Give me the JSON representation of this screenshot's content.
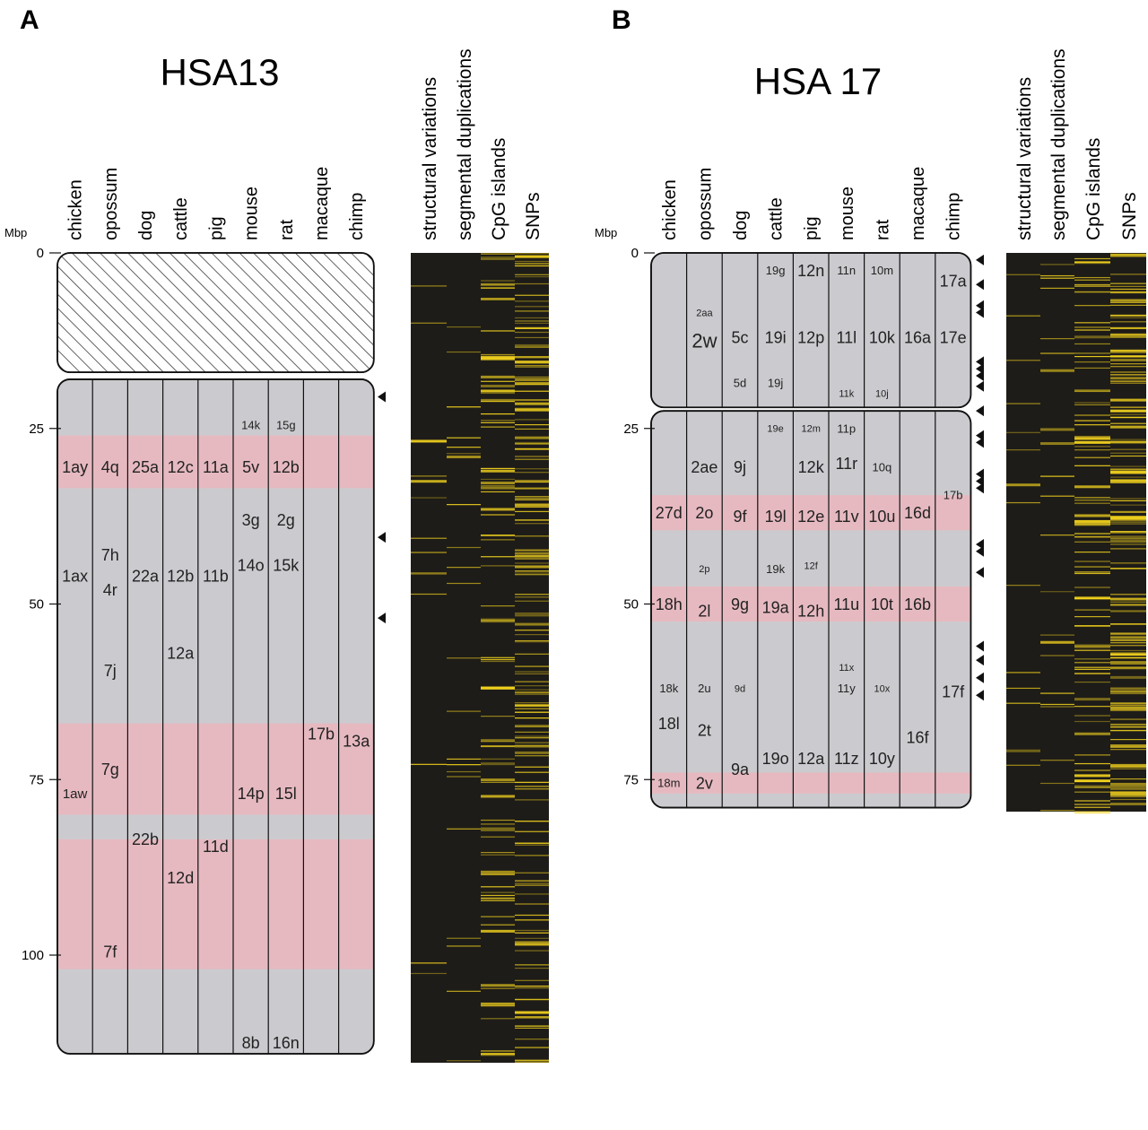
{
  "panels": [
    {
      "letter": "A",
      "title": "HSA13",
      "axis_unit": "Mbp",
      "axis_max": 117,
      "ticks": [
        0,
        25,
        50,
        75,
        100
      ],
      "species": [
        "chicken",
        "opossum",
        "dog",
        "cattle",
        "pig",
        "mouse",
        "rat",
        "macaque",
        "chimp"
      ],
      "tracks": [
        "structural variations",
        "segmental duplications",
        "CpG islands",
        "SNPs"
      ],
      "blocks": [
        {
          "start": 0,
          "end": 17,
          "kind": "hatched"
        },
        {
          "start": 18,
          "end": 117,
          "kind": "gray"
        }
      ],
      "pink_bands": [
        [
          26,
          33.5
        ],
        [
          67,
          80
        ],
        [
          83.5,
          102
        ]
      ],
      "arrows": [
        20.5,
        40.5,
        52
      ],
      "labels": [
        {
          "col": 0,
          "mbp": 30.5,
          "text": "1ay",
          "size": "m"
        },
        {
          "col": 1,
          "mbp": 30.5,
          "text": "4q",
          "size": "m"
        },
        {
          "col": 2,
          "mbp": 30.5,
          "text": "25a",
          "size": "m"
        },
        {
          "col": 3,
          "mbp": 30.5,
          "text": "12c",
          "size": "m"
        },
        {
          "col": 4,
          "mbp": 30.5,
          "text": "11a",
          "size": "m"
        },
        {
          "col": 5,
          "mbp": 30.5,
          "text": "5v",
          "size": "m"
        },
        {
          "col": 6,
          "mbp": 30.5,
          "text": "12b",
          "size": "m"
        },
        {
          "col": 5,
          "mbp": 24.5,
          "text": "14k",
          "size": "s"
        },
        {
          "col": 6,
          "mbp": 24.5,
          "text": "15g",
          "size": "s"
        },
        {
          "col": 5,
          "mbp": 38,
          "text": "3g",
          "size": "m"
        },
        {
          "col": 6,
          "mbp": 38,
          "text": "2g",
          "size": "m"
        },
        {
          "col": 1,
          "mbp": 43,
          "text": "7h",
          "size": "m"
        },
        {
          "col": 0,
          "mbp": 46,
          "text": "1ax",
          "size": "m"
        },
        {
          "col": 1,
          "mbp": 48,
          "text": "4r",
          "size": "m"
        },
        {
          "col": 2,
          "mbp": 46,
          "text": "22a",
          "size": "m"
        },
        {
          "col": 3,
          "mbp": 46,
          "text": "12b",
          "size": "m"
        },
        {
          "col": 4,
          "mbp": 46,
          "text": "11b",
          "size": "m"
        },
        {
          "col": 5,
          "mbp": 44.5,
          "text": "14o",
          "size": "m"
        },
        {
          "col": 6,
          "mbp": 44.5,
          "text": "15k",
          "size": "m"
        },
        {
          "col": 3,
          "mbp": 57,
          "text": "12a",
          "size": "m"
        },
        {
          "col": 1,
          "mbp": 59.5,
          "text": "7j",
          "size": "m"
        },
        {
          "col": 7,
          "mbp": 68.5,
          "text": "17b",
          "size": "m"
        },
        {
          "col": 8,
          "mbp": 69.5,
          "text": "13a",
          "size": "m"
        },
        {
          "col": 1,
          "mbp": 73.5,
          "text": "7g",
          "size": "m"
        },
        {
          "col": 0,
          "mbp": 77,
          "text": "1aw",
          "size": "s2"
        },
        {
          "col": 5,
          "mbp": 77,
          "text": "14p",
          "size": "m"
        },
        {
          "col": 6,
          "mbp": 77,
          "text": "15l",
          "size": "m"
        },
        {
          "col": 2,
          "mbp": 83.5,
          "text": "22b",
          "size": "m"
        },
        {
          "col": 4,
          "mbp": 84.5,
          "text": "11d",
          "size": "m"
        },
        {
          "col": 3,
          "mbp": 89,
          "text": "12d",
          "size": "m"
        },
        {
          "col": 1,
          "mbp": 99.5,
          "text": "7f",
          "size": "m"
        },
        {
          "col": 5,
          "mbp": 112.5,
          "text": "8b",
          "size": "m"
        },
        {
          "col": 6,
          "mbp": 112.5,
          "text": "16n",
          "size": "m"
        }
      ]
    },
    {
      "letter": "B",
      "title": "HSA 17",
      "axis_unit": "Mbp",
      "axis_max": 79,
      "ticks": [
        0,
        25,
        50,
        75
      ],
      "species": [
        "chicken",
        "opossum",
        "dog",
        "cattle",
        "pig",
        "mouse",
        "rat",
        "macaque",
        "chimp"
      ],
      "tracks": [
        "structural variations",
        "segmental duplications",
        "CpG islands",
        "SNPs"
      ],
      "blocks": [
        {
          "start": 0,
          "end": 22,
          "kind": "gray"
        },
        {
          "start": 22.5,
          "end": 79,
          "kind": "gray"
        }
      ],
      "pink_bands": [
        [
          34.5,
          39.5
        ],
        [
          47.5,
          52.5
        ],
        [
          74,
          77
        ]
      ],
      "arrows": [
        1,
        4.5,
        7.5,
        8.5,
        15.5,
        16.5,
        17.5,
        19,
        22.5,
        26,
        27,
        31.5,
        32.5,
        33.5,
        41.5,
        42.5,
        45.5,
        56,
        58,
        60.5,
        63
      ],
      "labels": [
        {
          "col": 3,
          "mbp": 2.5,
          "text": "19g",
          "size": "s"
        },
        {
          "col": 4,
          "mbp": 2.5,
          "text": "12n",
          "size": "m"
        },
        {
          "col": 5,
          "mbp": 2.5,
          "text": "11n",
          "size": "s"
        },
        {
          "col": 6,
          "mbp": 2.5,
          "text": "10m",
          "size": "s"
        },
        {
          "col": 8,
          "mbp": 4,
          "text": "17a",
          "size": "m"
        },
        {
          "col": 1,
          "mbp": 8.5,
          "text": "2aa",
          "size": "xs"
        },
        {
          "col": 1,
          "mbp": 12.5,
          "text": "2w",
          "size": "l"
        },
        {
          "col": 2,
          "mbp": 12,
          "text": "5c",
          "size": "m"
        },
        {
          "col": 3,
          "mbp": 12,
          "text": "19i",
          "size": "m"
        },
        {
          "col": 4,
          "mbp": 12,
          "text": "12p",
          "size": "m"
        },
        {
          "col": 5,
          "mbp": 12,
          "text": "11l",
          "size": "m"
        },
        {
          "col": 6,
          "mbp": 12,
          "text": "10k",
          "size": "m"
        },
        {
          "col": 7,
          "mbp": 12,
          "text": "16a",
          "size": "m"
        },
        {
          "col": 8,
          "mbp": 12,
          "text": "17e",
          "size": "m"
        },
        {
          "col": 2,
          "mbp": 18.5,
          "text": "5d",
          "size": "s"
        },
        {
          "col": 3,
          "mbp": 18.5,
          "text": "19j",
          "size": "s"
        },
        {
          "col": 5,
          "mbp": 20,
          "text": "11k",
          "size": "xs"
        },
        {
          "col": 6,
          "mbp": 20,
          "text": "10j",
          "size": "xs"
        },
        {
          "col": 3,
          "mbp": 25,
          "text": "19e",
          "size": "xs"
        },
        {
          "col": 4,
          "mbp": 25,
          "text": "12m",
          "size": "xs"
        },
        {
          "col": 5,
          "mbp": 25,
          "text": "11p",
          "size": "s"
        },
        {
          "col": 1,
          "mbp": 30.5,
          "text": "2ae",
          "size": "m"
        },
        {
          "col": 2,
          "mbp": 30.5,
          "text": "9j",
          "size": "m"
        },
        {
          "col": 4,
          "mbp": 30.5,
          "text": "12k",
          "size": "m"
        },
        {
          "col": 5,
          "mbp": 30,
          "text": "11r",
          "size": "m"
        },
        {
          "col": 6,
          "mbp": 30.5,
          "text": "10q",
          "size": "s"
        },
        {
          "col": 8,
          "mbp": 34.5,
          "text": "17b",
          "size": "s"
        },
        {
          "col": 0,
          "mbp": 37,
          "text": "27d",
          "size": "m"
        },
        {
          "col": 1,
          "mbp": 37,
          "text": "2o",
          "size": "m"
        },
        {
          "col": 2,
          "mbp": 37.5,
          "text": "9f",
          "size": "m"
        },
        {
          "col": 3,
          "mbp": 37.5,
          "text": "19l",
          "size": "m"
        },
        {
          "col": 4,
          "mbp": 37.5,
          "text": "12e",
          "size": "m"
        },
        {
          "col": 5,
          "mbp": 37.5,
          "text": "11v",
          "size": "m"
        },
        {
          "col": 6,
          "mbp": 37.5,
          "text": "10u",
          "size": "m"
        },
        {
          "col": 7,
          "mbp": 37,
          "text": "16d",
          "size": "m"
        },
        {
          "col": 1,
          "mbp": 45,
          "text": "2p",
          "size": "xs"
        },
        {
          "col": 3,
          "mbp": 45,
          "text": "19k",
          "size": "s"
        },
        {
          "col": 4,
          "mbp": 44.5,
          "text": "12f",
          "size": "xs"
        },
        {
          "col": 0,
          "mbp": 50,
          "text": "18h",
          "size": "m"
        },
        {
          "col": 1,
          "mbp": 51,
          "text": "2l",
          "size": "m"
        },
        {
          "col": 2,
          "mbp": 50,
          "text": "9g",
          "size": "m"
        },
        {
          "col": 3,
          "mbp": 50.5,
          "text": "19a",
          "size": "m"
        },
        {
          "col": 4,
          "mbp": 51,
          "text": "12h",
          "size": "m"
        },
        {
          "col": 5,
          "mbp": 50,
          "text": "11u",
          "size": "m"
        },
        {
          "col": 6,
          "mbp": 50,
          "text": "10t",
          "size": "m"
        },
        {
          "col": 7,
          "mbp": 50,
          "text": "16b",
          "size": "m"
        },
        {
          "col": 5,
          "mbp": 59,
          "text": "11x",
          "size": "xs"
        },
        {
          "col": 0,
          "mbp": 62,
          "text": "18k",
          "size": "s"
        },
        {
          "col": 1,
          "mbp": 62,
          "text": "2u",
          "size": "s"
        },
        {
          "col": 2,
          "mbp": 62,
          "text": "9d",
          "size": "xs"
        },
        {
          "col": 5,
          "mbp": 62,
          "text": "11y",
          "size": "s"
        },
        {
          "col": 6,
          "mbp": 62,
          "text": "10x",
          "size": "xs"
        },
        {
          "col": 8,
          "mbp": 62.5,
          "text": "17f",
          "size": "m"
        },
        {
          "col": 0,
          "mbp": 67,
          "text": "18l",
          "size": "m"
        },
        {
          "col": 1,
          "mbp": 68,
          "text": "2t",
          "size": "m"
        },
        {
          "col": 7,
          "mbp": 69,
          "text": "16f",
          "size": "m"
        },
        {
          "col": 3,
          "mbp": 72,
          "text": "19o",
          "size": "m"
        },
        {
          "col": 4,
          "mbp": 72,
          "text": "12a",
          "size": "m"
        },
        {
          "col": 5,
          "mbp": 72,
          "text": "11z",
          "size": "m"
        },
        {
          "col": 6,
          "mbp": 72,
          "text": "10y",
          "size": "m"
        },
        {
          "col": 2,
          "mbp": 73.5,
          "text": "9a",
          "size": "m"
        },
        {
          "col": 0,
          "mbp": 75.5,
          "text": "18m",
          "size": "s"
        },
        {
          "col": 1,
          "mbp": 75.5,
          "text": "2v",
          "size": "m"
        }
      ]
    }
  ],
  "colors": {
    "block_gray": "#cbcbcf",
    "pink_band": "#e8b7bf",
    "track_bg": "#1e1c18",
    "track_yellow": "#f4d41e"
  }
}
